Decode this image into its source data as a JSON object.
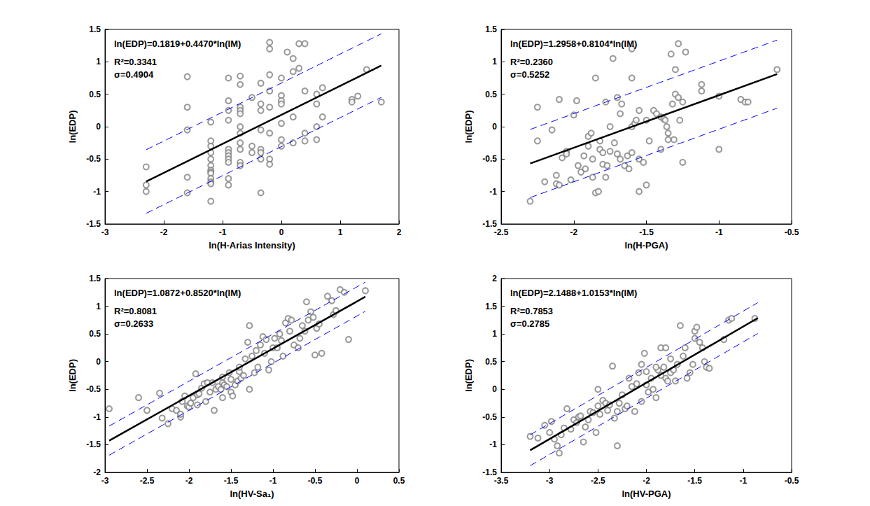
{
  "chart_data": [
    {
      "type": "scatter",
      "x_label": "ln(H-Arias Intensity)",
      "y_label": "ln(EDP)",
      "annotations": [
        "ln(EDP)=0.1819+0.4470*ln(IM)",
        "R²=0.3341",
        "σ=0.4904"
      ],
      "xlim": [
        -3,
        2
      ],
      "xticks": [
        -3,
        -2,
        -1,
        0,
        1,
        2
      ],
      "ylim": [
        -1.5,
        1.5
      ],
      "yticks": [
        -1.5,
        -1,
        -0.5,
        0,
        0.5,
        1,
        1.5
      ],
      "grid": false,
      "series": [
        {
          "type": "scatter",
          "marker": "open_circle",
          "color": "#808080",
          "x": [
            -2.3,
            -2.3,
            -2.3,
            -1.6,
            -1.6,
            -1.6,
            -1.6,
            -1.6,
            -1.2,
            -1.2,
            -1.2,
            -1.2,
            -1.2,
            -1.2,
            -1.2,
            -1.2,
            -1.2,
            -1.2,
            -1.2,
            -1.2,
            -1.2,
            -0.9,
            -0.9,
            -0.9,
            -0.9,
            -0.9,
            -0.9,
            -0.9,
            -0.9,
            -0.9,
            -0.9,
            -0.9,
            -0.7,
            -0.7,
            -0.7,
            -0.7,
            -0.7,
            -0.7,
            -0.7,
            -0.7,
            -0.7,
            -0.7,
            -0.7,
            -0.5,
            -0.5,
            -0.5,
            -0.35,
            -0.35,
            -0.35,
            -0.35,
            -0.35,
            -0.35,
            -0.35,
            -0.35,
            -0.2,
            -0.2,
            -0.2,
            -0.2,
            -0.2,
            -0.2,
            -0.2,
            -0.2,
            0,
            0,
            0,
            0,
            0,
            0,
            0,
            0.1,
            0.2,
            0.2,
            0.2,
            0.2,
            0.3,
            0.3,
            0.4,
            0.4,
            0.4,
            0.4,
            0.6,
            0.6,
            0.6,
            0.6,
            0.7,
            0.7,
            1.2,
            1.2,
            1.3,
            1.45,
            1.7
          ],
          "values": [
            -0.62,
            -0.9,
            -1.0,
            0.77,
            0.3,
            -0.05,
            -0.78,
            -1.02,
            0.07,
            -0.22,
            -0.3,
            -0.4,
            -0.5,
            -0.6,
            -0.67,
            -0.7,
            -0.72,
            -0.8,
            -0.85,
            -0.88,
            -1.15,
            0.75,
            0.4,
            0.25,
            0.1,
            -0.35,
            -0.4,
            -0.45,
            -0.5,
            -0.55,
            -0.8,
            -0.9,
            0.78,
            0.65,
            0.3,
            0.25,
            0.2,
            0.0,
            -0.1,
            -0.25,
            -0.35,
            -0.55,
            -0.6,
            0.45,
            -0.4,
            -0.3,
            0.67,
            0.35,
            0.25,
            -0.05,
            -0.35,
            -0.4,
            -0.5,
            -1.02,
            1.3,
            1.2,
            0.8,
            0.55,
            0.3,
            -0.1,
            -0.5,
            -0.58,
            0.75,
            0.48,
            0.4,
            0.35,
            0.05,
            -0.2,
            -0.3,
            1.15,
            1.05,
            0.85,
            0.15,
            -0.25,
            1.28,
            0.9,
            1.28,
            0.55,
            -0.1,
            -0.22,
            0.35,
            0.0,
            0.5,
            -0.2,
            0.6,
            0.15,
            0.42,
            0.38,
            0.47,
            0.88,
            0.38
          ]
        },
        {
          "type": "line",
          "marker": "none",
          "line_style": "solid",
          "color": "#000000",
          "x": [
            -2.3,
            1.7
          ],
          "values": [
            -0.846,
            0.942
          ]
        },
        {
          "type": "line",
          "marker": "none",
          "line_style": "dashed",
          "color": "#0000ff",
          "x": [
            -2.3,
            1.7
          ],
          "values": [
            -0.356,
            1.432
          ]
        },
        {
          "type": "line",
          "marker": "none",
          "line_style": "dashed",
          "color": "#0000ff",
          "x": [
            -2.3,
            1.7
          ],
          "values": [
            -1.336,
            0.452
          ]
        }
      ]
    },
    {
      "type": "scatter",
      "x_label": "ln(H-PGA)",
      "y_label": "ln(EDP)",
      "annotations": [
        "ln(EDP)=1.2958+0.8104*ln(IM)",
        "R²=0.2360",
        "σ=0.5252"
      ],
      "xlim": [
        -2.5,
        -0.5
      ],
      "xticks": [
        -2.5,
        -2,
        -1.5,
        -1,
        -0.5
      ],
      "ylim": [
        -1.5,
        1.5
      ],
      "yticks": [
        -1.5,
        -1,
        -0.5,
        0,
        0.5,
        1,
        1.5
      ],
      "grid": false,
      "series": [
        {
          "type": "scatter",
          "marker": "open_circle",
          "color": "#808080",
          "x": [
            -2.3,
            -2.25,
            -2.25,
            -2.2,
            -2.15,
            -2.12,
            -2.12,
            -2.1,
            -2.1,
            -2.08,
            -2.05,
            -2.05,
            -2.02,
            -2.0,
            -1.98,
            -1.97,
            -1.95,
            -1.93,
            -1.92,
            -1.9,
            -1.9,
            -1.88,
            -1.87,
            -1.87,
            -1.85,
            -1.85,
            -1.83,
            -1.82,
            -1.82,
            -1.8,
            -1.8,
            -1.78,
            -1.78,
            -1.77,
            -1.75,
            -1.75,
            -1.73,
            -1.72,
            -1.7,
            -1.7,
            -1.68,
            -1.68,
            -1.67,
            -1.65,
            -1.63,
            -1.62,
            -1.6,
            -1.6,
            -1.6,
            -1.58,
            -1.57,
            -1.55,
            -1.55,
            -1.55,
            -1.52,
            -1.5,
            -1.5,
            -1.48,
            -1.45,
            -1.43,
            -1.4,
            -1.4,
            -1.38,
            -1.37,
            -1.36,
            -1.35,
            -1.35,
            -1.33,
            -1.32,
            -1.31,
            -1.3,
            -1.3,
            -1.28,
            -1.28,
            -1.27,
            -1.25,
            -1.25,
            -1.23,
            -1.12,
            -1.12,
            -1.0,
            -1.0,
            -0.85,
            -0.82,
            -0.8,
            -0.6,
            -1.6
          ],
          "values": [
            -1.15,
            0.3,
            -0.22,
            -0.85,
            -0.05,
            -0.75,
            -0.88,
            -0.9,
            0.42,
            -0.48,
            -0.38,
            -0.42,
            -0.82,
            0.18,
            0.4,
            -0.6,
            -0.7,
            -0.45,
            -0.65,
            -0.15,
            -0.3,
            -0.1,
            -0.5,
            -0.78,
            0.75,
            -1.02,
            -1.0,
            -0.22,
            -0.35,
            -0.4,
            -0.58,
            0.38,
            -0.78,
            -0.6,
            0.0,
            -0.38,
            1.05,
            -0.25,
            0.45,
            -0.42,
            -0.5,
            0.2,
            0.35,
            -0.6,
            -0.45,
            -0.65,
            1.2,
            0.75,
            0.0,
            0.05,
            0.1,
            0.25,
            -0.5,
            -1.0,
            -0.55,
            -0.9,
            0.1,
            -0.22,
            0.25,
            0.2,
            0.15,
            -0.35,
            0.12,
            0.1,
            0.0,
            -0.1,
            -0.2,
            1.12,
            0.35,
            -0.2,
            0.88,
            0.5,
            1.28,
            0.45,
            0.1,
            0.38,
            -0.55,
            1.15,
            0.65,
            0.55,
            0.47,
            -0.35,
            0.42,
            0.38,
            0.38,
            0.88,
            -0.4
          ]
        },
        {
          "type": "line",
          "marker": "none",
          "line_style": "solid",
          "color": "#000000",
          "x": [
            -2.3,
            -0.6
          ],
          "values": [
            -0.568,
            0.81
          ]
        },
        {
          "type": "line",
          "marker": "none",
          "line_style": "dashed",
          "color": "#0000ff",
          "x": [
            -2.3,
            -0.6
          ],
          "values": [
            -0.043,
            1.335
          ]
        },
        {
          "type": "line",
          "marker": "none",
          "line_style": "dashed",
          "color": "#0000ff",
          "x": [
            -2.3,
            -0.6
          ],
          "values": [
            -1.093,
            0.285
          ]
        }
      ]
    },
    {
      "type": "scatter",
      "x_label": "ln(HV-Sa₁)",
      "y_label": "ln(EDP)",
      "annotations": [
        "ln(EDP)=1.0872+0.8520*ln(IM)",
        "R²=0.8081",
        "σ=0.2633"
      ],
      "xlim": [
        -3,
        0.5
      ],
      "xticks": [
        -3,
        -2.5,
        -2,
        -1.5,
        -1,
        -0.5,
        0,
        0.5
      ],
      "ylim": [
        -2,
        1.5
      ],
      "yticks": [
        -2,
        -1.5,
        -1,
        -0.5,
        0,
        0.5,
        1,
        1.5
      ],
      "grid": false,
      "series": [
        {
          "type": "scatter",
          "marker": "open_circle",
          "color": "#808080",
          "x": [
            -2.95,
            -2.6,
            -2.5,
            -2.35,
            -2.32,
            -2.25,
            -2.2,
            -2.15,
            -2.1,
            -2.08,
            -2.05,
            -2.02,
            -2.0,
            -1.98,
            -1.95,
            -1.92,
            -1.9,
            -1.88,
            -1.85,
            -1.82,
            -1.8,
            -1.78,
            -1.75,
            -1.72,
            -1.7,
            -1.68,
            -1.65,
            -1.62,
            -1.6,
            -1.6,
            -1.58,
            -1.55,
            -1.52,
            -1.5,
            -1.5,
            -1.48,
            -1.45,
            -1.42,
            -1.4,
            -1.4,
            -1.38,
            -1.35,
            -1.33,
            -1.3,
            -1.28,
            -1.28,
            -1.25,
            -1.22,
            -1.2,
            -1.18,
            -1.15,
            -1.12,
            -1.1,
            -1.08,
            -1.05,
            -1.02,
            -1.0,
            -0.98,
            -0.95,
            -0.92,
            -0.9,
            -0.88,
            -0.85,
            -0.82,
            -0.8,
            -0.78,
            -0.75,
            -0.7,
            -0.68,
            -0.65,
            -0.62,
            -0.6,
            -0.58,
            -0.55,
            -0.52,
            -0.5,
            -0.48,
            -0.45,
            -0.42,
            -0.35,
            -0.3,
            -0.28,
            -0.25,
            -0.2,
            -0.15,
            -0.1,
            0.1,
            -1.9,
            -1.6,
            -2.1
          ],
          "values": [
            -0.85,
            -0.65,
            -0.88,
            -0.57,
            -1.02,
            -1.12,
            -0.85,
            -0.88,
            -1.0,
            -0.72,
            -0.62,
            -0.8,
            -0.82,
            -0.75,
            -0.65,
            -0.22,
            -0.6,
            -0.58,
            -0.48,
            -0.4,
            -0.72,
            -0.38,
            -0.55,
            -0.38,
            -0.88,
            -0.5,
            -0.45,
            -0.5,
            -0.38,
            -0.28,
            -0.42,
            -0.45,
            -0.2,
            -0.32,
            -0.55,
            -0.62,
            -0.42,
            -0.35,
            -0.18,
            -0.1,
            -0.3,
            -0.25,
            0.05,
            0.35,
            0.65,
            -0.5,
            0.1,
            -0.2,
            0.2,
            -0.1,
            0.3,
            0.45,
            0.15,
            0.4,
            -0.15,
            0.0,
            0.25,
            0.42,
            0.25,
            0.5,
            0.38,
            0.1,
            0.7,
            0.78,
            0.55,
            0.75,
            0.3,
            0.25,
            0.42,
            0.65,
            0.55,
            1.08,
            0.75,
            0.9,
            0.8,
            0.12,
            0.6,
            0.68,
            0.15,
            1.18,
            1.1,
            0.85,
            0.92,
            1.3,
            1.25,
            0.4,
            1.28,
            -0.78,
            -0.65,
            -0.95
          ]
        },
        {
          "type": "line",
          "marker": "none",
          "line_style": "solid",
          "color": "#000000",
          "x": [
            -2.95,
            0.1
          ],
          "values": [
            -1.426,
            1.172
          ]
        },
        {
          "type": "line",
          "marker": "none",
          "line_style": "dashed",
          "color": "#0000ff",
          "x": [
            -2.95,
            0.1
          ],
          "values": [
            -1.163,
            1.435
          ]
        },
        {
          "type": "line",
          "marker": "none",
          "line_style": "dashed",
          "color": "#0000ff",
          "x": [
            -2.95,
            0.1
          ],
          "values": [
            -1.689,
            0.909
          ]
        }
      ]
    },
    {
      "type": "scatter",
      "x_label": "ln(HV-PGA)",
      "y_label": "ln(EDP)",
      "annotations": [
        "ln(EDP)=2.1488+1.0153*ln(IM)",
        "R²=0.7853",
        "σ=0.2785"
      ],
      "xlim": [
        -3.5,
        -0.5
      ],
      "xticks": [
        -3.5,
        -3,
        -2.5,
        -2,
        -1.5,
        -1,
        -0.5
      ],
      "ylim": [
        -1.5,
        2
      ],
      "yticks": [
        -1.5,
        -1,
        -0.5,
        0,
        0.5,
        1,
        1.5,
        2
      ],
      "grid": false,
      "series": [
        {
          "type": "scatter",
          "marker": "open_circle",
          "color": "#808080",
          "x": [
            -3.2,
            -3.12,
            -3.05,
            -3.0,
            -2.98,
            -2.95,
            -2.92,
            -2.9,
            -2.88,
            -2.85,
            -2.82,
            -2.78,
            -2.75,
            -2.72,
            -2.7,
            -2.68,
            -2.65,
            -2.63,
            -2.6,
            -2.58,
            -2.55,
            -2.52,
            -2.5,
            -2.5,
            -2.48,
            -2.45,
            -2.42,
            -2.4,
            -2.38,
            -2.35,
            -2.33,
            -2.3,
            -2.3,
            -2.28,
            -2.25,
            -2.22,
            -2.2,
            -2.18,
            -2.15,
            -2.12,
            -2.1,
            -2.08,
            -2.05,
            -2.05,
            -2.02,
            -2.0,
            -1.98,
            -1.95,
            -1.93,
            -1.9,
            -1.88,
            -1.85,
            -1.85,
            -1.82,
            -1.8,
            -1.8,
            -1.78,
            -1.75,
            -1.75,
            -1.72,
            -1.7,
            -1.68,
            -1.65,
            -1.62,
            -1.6,
            -1.58,
            -1.55,
            -1.52,
            -1.5,
            -1.5,
            -1.48,
            -1.45,
            -1.42,
            -1.4,
            -1.38,
            -1.35,
            -1.2,
            -1.15,
            -1.12,
            -0.88,
            -1.9,
            -2.0
          ],
          "values": [
            -0.85,
            -0.88,
            -0.65,
            -0.78,
            -0.58,
            -0.9,
            -1.02,
            -1.15,
            -0.82,
            -0.7,
            -0.35,
            -0.72,
            -0.55,
            -0.6,
            -0.5,
            -0.48,
            -0.95,
            -0.68,
            -0.55,
            -0.4,
            -0.42,
            -0.78,
            -0.3,
            0.0,
            -0.45,
            -0.2,
            -0.25,
            -0.38,
            -0.28,
            0.42,
            -0.52,
            -1.02,
            -0.4,
            -0.25,
            -0.1,
            -0.35,
            -0.3,
            0.2,
            0.05,
            -0.4,
            0.1,
            0.3,
            0.45,
            -0.22,
            0.65,
            0.08,
            -0.05,
            0.2,
            0.0,
            -0.15,
            0.35,
            0.75,
            0.25,
            0.4,
            0.75,
            0.2,
            0.15,
            0.3,
            0.55,
            0.35,
            0.15,
            0.45,
            1.15,
            0.6,
            0.75,
            0.2,
            0.3,
            0.45,
            0.92,
            1.05,
            1.12,
            0.85,
            0.75,
            0.5,
            0.4,
            0.38,
            0.9,
            1.25,
            1.28,
            1.28,
            0.4,
            0.32
          ]
        },
        {
          "type": "line",
          "marker": "none",
          "line_style": "solid",
          "color": "#000000",
          "x": [
            -3.2,
            -0.85
          ],
          "values": [
            -1.1,
            1.286
          ]
        },
        {
          "type": "line",
          "marker": "none",
          "line_style": "dashed",
          "color": "#0000ff",
          "x": [
            -3.2,
            -0.85
          ],
          "values": [
            -0.822,
            1.564
          ]
        },
        {
          "type": "line",
          "marker": "none",
          "line_style": "dashed",
          "color": "#0000ff",
          "x": [
            -3.2,
            -0.85
          ],
          "values": [
            -1.379,
            1.008
          ]
        }
      ]
    }
  ]
}
